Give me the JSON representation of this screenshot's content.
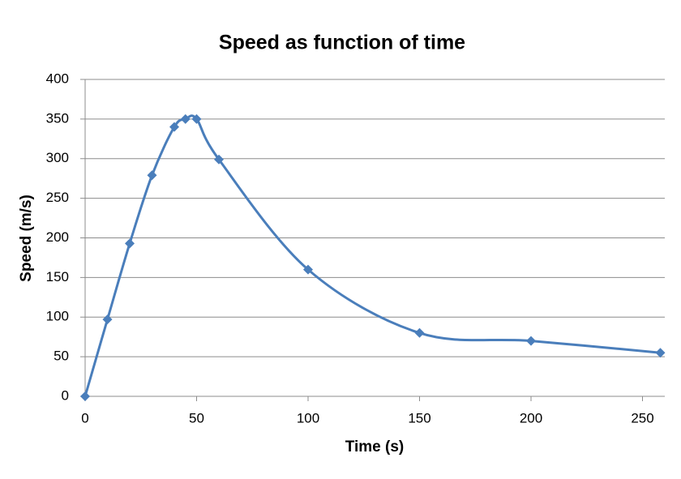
{
  "chart_data": {
    "type": "line",
    "title": "Speed as function of time",
    "x_label": "Time (s)",
    "y_label": "Speed (m/s)",
    "x": [
      0,
      10,
      20,
      30,
      40,
      45,
      50,
      60,
      100,
      150,
      200,
      258
    ],
    "series": [
      {
        "name": "Speed",
        "color": "#4a7ebb",
        "values": [
          0,
          97,
          193,
          279,
          340,
          350,
          350,
          299,
          160,
          80,
          70,
          55
        ]
      }
    ],
    "xlim": [
      0,
      260
    ],
    "xticks": [
      0,
      50,
      100,
      150,
      200,
      250
    ],
    "ylim": [
      0,
      400
    ],
    "yticks": [
      0,
      50,
      100,
      150,
      200,
      250,
      300,
      350,
      400
    ],
    "grid": true,
    "smooth": true,
    "marker": "diamond"
  }
}
